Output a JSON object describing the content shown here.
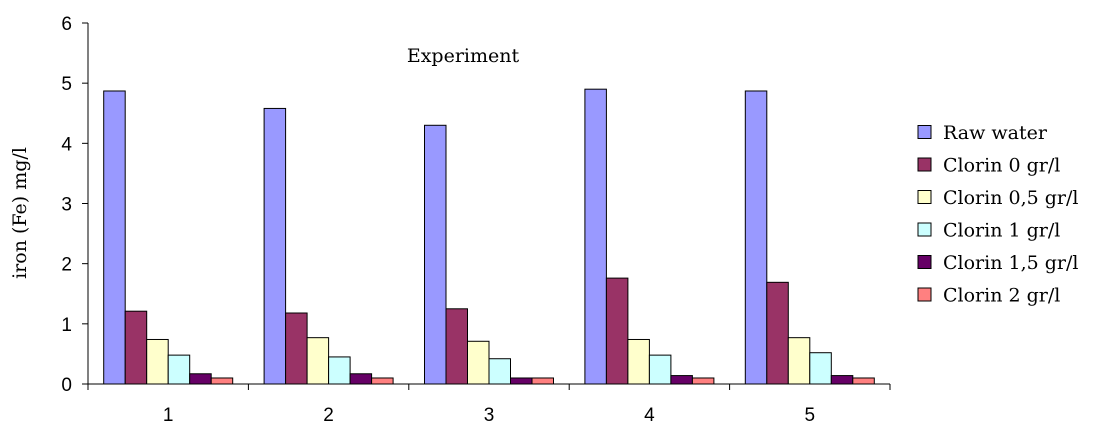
{
  "chart_data": {
    "type": "bar",
    "title": "Experiment",
    "xlabel": "",
    "ylabel": "iron (Fe) mg/l",
    "ylim": [
      0,
      6
    ],
    "yticks": [
      0,
      1,
      2,
      3,
      4,
      5,
      6
    ],
    "categories": [
      "1",
      "2",
      "3",
      "4",
      "5"
    ],
    "legend_position": "right",
    "grid": false,
    "series": [
      {
        "name": "Raw water",
        "color": "#9999ff",
        "values": [
          4.87,
          4.58,
          4.3,
          4.9,
          4.87
        ]
      },
      {
        "name": "Clorin 0 gr/l",
        "color": "#993366",
        "values": [
          1.21,
          1.18,
          1.25,
          1.76,
          1.69
        ]
      },
      {
        "name": "Clorin 0,5 gr/l",
        "color": "#ffffcc",
        "values": [
          0.74,
          0.77,
          0.71,
          0.74,
          0.77
        ]
      },
      {
        "name": "Clorin 1 gr/l",
        "color": "#ccffff",
        "values": [
          0.48,
          0.45,
          0.42,
          0.48,
          0.52
        ]
      },
      {
        "name": "Clorin 1,5 gr/l",
        "color": "#660066",
        "values": [
          0.17,
          0.17,
          0.1,
          0.14,
          0.14
        ]
      },
      {
        "name": "Clorin 2 gr/l",
        "color": "#ff8080",
        "values": [
          0.1,
          0.1,
          0.1,
          0.1,
          0.1
        ]
      }
    ]
  }
}
